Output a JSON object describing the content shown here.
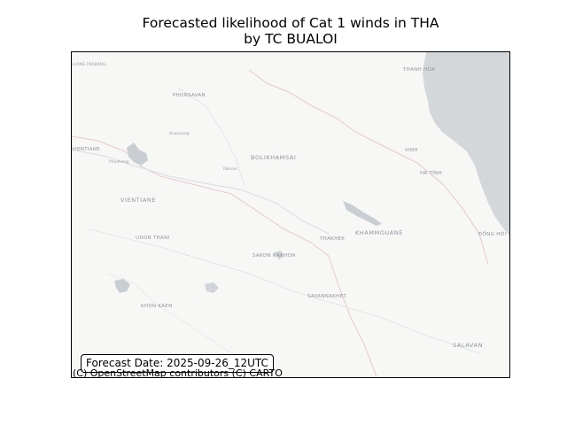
{
  "title": {
    "line1": "Forecasted likelihood of Cat 1 winds in THA",
    "line2": "by TC BUALOI"
  },
  "forecast_box": {
    "text": "Forecast Date: 2025-09-26_12UTC"
  },
  "attribution": "(C) OpenStreetMap contributors (C) CARTO",
  "map": {
    "colors": {
      "land": "#f7f7f6",
      "sea": "#d3d7da",
      "border": "#e6c9cc",
      "water": "#c9ced3",
      "river": "#dde1e4"
    },
    "places": [
      "LUANG PRABANG",
      "PHONSAVAN",
      "Anouvong",
      "VIENTIANE",
      "Phonhong",
      "BOLIKHAMSAI",
      "Paksan",
      "VIENTIANE",
      "UDON THANI",
      "SAKON NAKHON",
      "THAKHEK",
      "KHAMMOUANE",
      "SAVANNAKHET",
      "KHON KAEN",
      "SALAVAN",
      "THANH HÓA",
      "VINH",
      "HÀ TĨNH",
      "ĐỒNG HỚI"
    ]
  }
}
